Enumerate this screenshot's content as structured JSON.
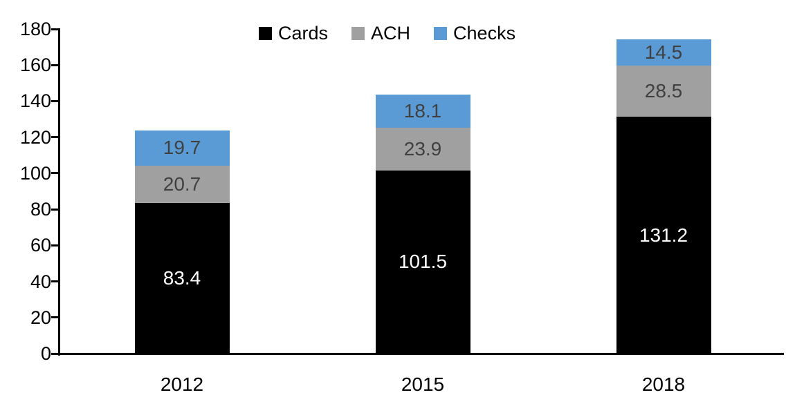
{
  "chart_data": {
    "type": "bar",
    "stacked": true,
    "title": "",
    "xlabel": "",
    "ylabel": "",
    "categories": [
      "2012",
      "2015",
      "2018"
    ],
    "series": [
      {
        "name": "Cards",
        "color": "#000000",
        "label_color": "#ffffff",
        "values": [
          83.4,
          101.5,
          131.2
        ]
      },
      {
        "name": "ACH",
        "color": "#a0a0a0",
        "label_color": "#404040",
        "values": [
          20.7,
          23.9,
          28.5
        ]
      },
      {
        "name": "Checks",
        "color": "#5b9bd5",
        "label_color": "#404040",
        "values": [
          19.7,
          18.1,
          14.5
        ]
      }
    ],
    "totals": [
      123.8,
      143.5,
      174.2
    ],
    "ylim": [
      0,
      180
    ],
    "ytick_step": 20,
    "yticks": [
      0,
      20,
      40,
      60,
      80,
      100,
      120,
      140,
      160,
      180
    ],
    "grid": false,
    "legend_position": "top-center",
    "data_labels": "inside-center",
    "axis_color": "#000000"
  }
}
